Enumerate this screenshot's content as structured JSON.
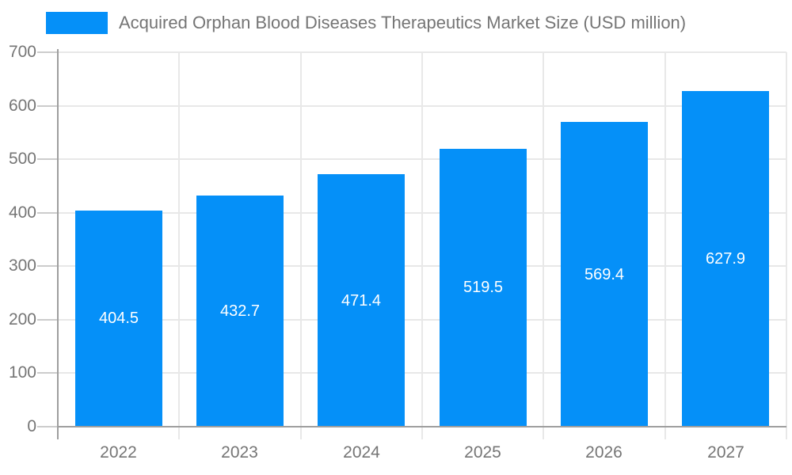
{
  "chart_data": {
    "type": "bar",
    "title": "Acquired Orphan Blood Diseases Therapeutics Market Size (USD million)",
    "categories": [
      "2022",
      "2023",
      "2024",
      "2025",
      "2026",
      "2027"
    ],
    "values": [
      404.5,
      432.7,
      471.4,
      519.5,
      569.4,
      627.9
    ],
    "value_labels": [
      "404.5",
      "432.7",
      "471.4",
      "519.5",
      "569.4",
      "627.9"
    ],
    "xlabel": "",
    "ylabel": "",
    "ylim": [
      0,
      700
    ],
    "ytick_step": 100,
    "ytick_labels": [
      "0",
      "100",
      "200",
      "300",
      "400",
      "500",
      "600",
      "700"
    ],
    "grid": true,
    "legend_position": "top-left",
    "colors": {
      "bar": "#0590F8",
      "grid": "#e8e8e8",
      "axis": "#9e9e9e",
      "tick": "#cccccc",
      "axis_text": "#757575",
      "value_text": "#ffffff",
      "background": "#ffffff"
    }
  }
}
